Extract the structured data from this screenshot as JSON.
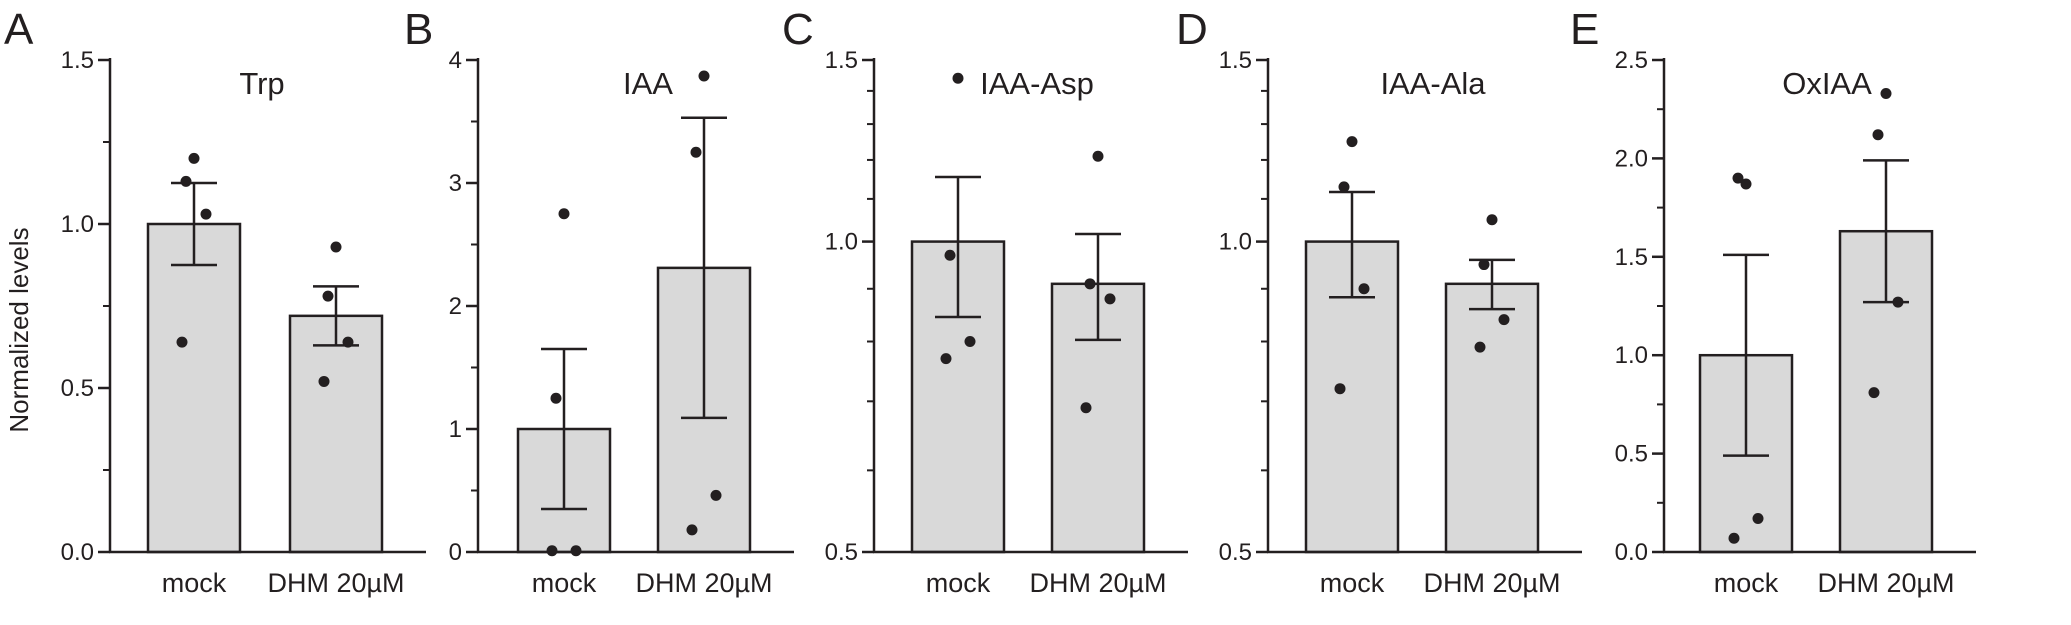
{
  "figure": {
    "shared_ylabel": "Normalized levels",
    "colors": {
      "bar_fill": "#d9d9d9",
      "stroke": "#231f20",
      "point": "#231f20"
    }
  },
  "chart_data": [
    {
      "type": "bar",
      "panel": "A",
      "title": "Trp",
      "ylabel": "Normalized levels",
      "categories": [
        "mock",
        "DHM 20µM"
      ],
      "values": [
        1.0,
        0.72
      ],
      "error": [
        0.125,
        0.09
      ],
      "points": [
        [
          1.2,
          1.13,
          1.03,
          0.64
        ],
        [
          0.93,
          0.78,
          0.64,
          0.52
        ]
      ],
      "ylim": [
        0,
        1.5
      ],
      "yticks": [
        0.0,
        0.5,
        1.0,
        1.5
      ],
      "ytick_labels": [
        "0.0",
        "0.5",
        "1.0",
        "1.5"
      ],
      "scale": "linear"
    },
    {
      "type": "bar",
      "panel": "B",
      "title": "IAA",
      "categories": [
        "mock",
        "DHM 20µM"
      ],
      "values": [
        1.0,
        2.31
      ],
      "error": [
        0.65,
        1.22
      ],
      "points": [
        [
          2.75,
          1.25,
          0.01,
          0.01
        ],
        [
          3.87,
          3.25,
          0.46,
          0.18
        ]
      ],
      "ylim": [
        0,
        4
      ],
      "yticks": [
        0,
        1,
        2,
        3,
        4
      ],
      "ytick_labels": [
        "0",
        "1",
        "2",
        "3",
        "4"
      ],
      "scale": "linear"
    },
    {
      "type": "bar",
      "panel": "C",
      "title": "IAA-Asp",
      "categories": [
        "mock",
        "DHM 20µM"
      ],
      "values": [
        1.0,
        0.91
      ],
      "error": [
        0.155,
        0.107
      ],
      "points": [
        [
          1.44,
          0.97,
          0.8,
          0.77
        ],
        [
          1.21,
          0.91,
          0.88,
          0.69
        ]
      ],
      "ylim": [
        0.5,
        1.5
      ],
      "yticks": [
        0.5,
        1.0,
        1.5
      ],
      "ytick_labels": [
        "0.5",
        "1.0",
        "1.5"
      ],
      "scale": "log"
    },
    {
      "type": "bar",
      "panel": "D",
      "title": "IAA-Ala",
      "categories": [
        "mock",
        "DHM 20µM"
      ],
      "values": [
        1.0,
        0.91
      ],
      "error": [
        0.117,
        0.05
      ],
      "points": [
        [
          1.25,
          1.13,
          0.9,
          0.72
        ],
        [
          1.05,
          0.95,
          0.84,
          0.79
        ]
      ],
      "ylim": [
        0.5,
        1.5
      ],
      "yticks": [
        0.5,
        1.0,
        1.5
      ],
      "ytick_labels": [
        "0.5",
        "1.0",
        "1.5"
      ],
      "scale": "log"
    },
    {
      "type": "bar",
      "panel": "E",
      "title": "OxIAA",
      "categories": [
        "mock",
        "DHM 20µM"
      ],
      "values": [
        1.0,
        1.63
      ],
      "error": [
        0.51,
        0.36
      ],
      "points": [
        [
          1.87,
          1.9,
          0.17,
          0.07
        ],
        [
          2.33,
          2.12,
          1.27,
          0.81
        ]
      ],
      "ylim": [
        0,
        2.5
      ],
      "yticks": [
        0.0,
        0.5,
        1.0,
        1.5,
        2.0,
        2.5
      ],
      "ytick_labels": [
        "0.0",
        "0.5",
        "1.0",
        "1.5",
        "2.0",
        "2.5"
      ],
      "scale": "linear"
    }
  ]
}
